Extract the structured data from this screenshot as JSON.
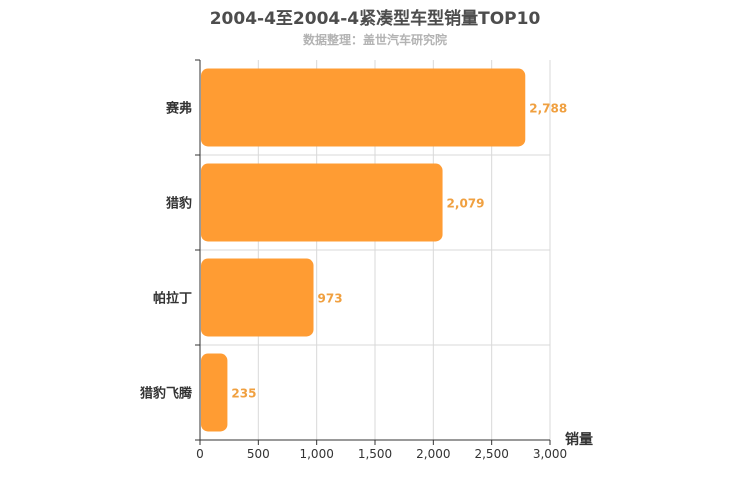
{
  "title": "2004-4至2004-4紧凑型车型销量TOP10",
  "subtitle": "数据整理：盖世汽车研究院",
  "chart_data": {
    "type": "bar",
    "orientation": "horizontal",
    "categories": [
      "赛弗",
      "猎豹",
      "帕拉丁",
      "猎豹飞腾"
    ],
    "values": [
      2788,
      2079,
      973,
      235
    ],
    "value_labels": [
      "2,788",
      "2,079",
      "973",
      "235"
    ],
    "xlabel": "销量",
    "ylabel": "",
    "xlim": [
      0,
      3000
    ],
    "xticks": [
      0,
      500,
      1000,
      1500,
      2000,
      2500,
      3000
    ],
    "xtick_labels": [
      "0",
      "500",
      "1,000",
      "1,500",
      "2,000",
      "2,500",
      "3,000"
    ],
    "grid": true,
    "bar_color": "#ff9c33",
    "label_color": "#f0a040"
  }
}
